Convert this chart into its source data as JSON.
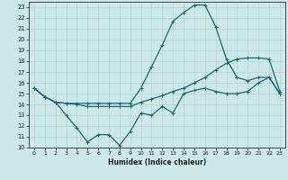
{
  "xlabel": "Humidex (Indice chaleur)",
  "bg_color": "#cce8e8",
  "grid_color": "#b0d4d4",
  "line_color": "#1a6b6b",
  "xlim": [
    -0.5,
    23.5
  ],
  "ylim": [
    10,
    23.5
  ],
  "xticks": [
    0,
    1,
    2,
    3,
    4,
    5,
    6,
    7,
    8,
    9,
    10,
    11,
    12,
    13,
    14,
    15,
    16,
    17,
    18,
    19,
    20,
    21,
    22,
    23
  ],
  "yticks": [
    10,
    11,
    12,
    13,
    14,
    15,
    16,
    17,
    18,
    19,
    20,
    21,
    22,
    23
  ],
  "line1_x": [
    0,
    1,
    2,
    3,
    4,
    5,
    6,
    7,
    8,
    9,
    10,
    11,
    12,
    13,
    14,
    15,
    16,
    17,
    18,
    19,
    20,
    21,
    22,
    23
  ],
  "line1_y": [
    15.5,
    14.7,
    14.2,
    14.1,
    14.1,
    14.1,
    14.1,
    14.1,
    14.1,
    14.1,
    15.5,
    17.5,
    19.5,
    21.7,
    22.5,
    23.2,
    23.2,
    21.2,
    18.2,
    16.5,
    16.2,
    16.5,
    16.5,
    15.0
  ],
  "line2_x": [
    0,
    1,
    2,
    3,
    4,
    5,
    6,
    7,
    8,
    9,
    10,
    11,
    12,
    13,
    14,
    15,
    16,
    17,
    18,
    19,
    20,
    21,
    22,
    23
  ],
  "line2_y": [
    15.5,
    14.7,
    14.2,
    14.1,
    14.0,
    13.8,
    13.8,
    13.8,
    13.8,
    13.8,
    14.2,
    14.5,
    14.8,
    15.2,
    15.5,
    16.0,
    16.5,
    17.2,
    17.8,
    18.2,
    18.3,
    18.3,
    18.2,
    15.2
  ],
  "line3_x": [
    0,
    1,
    2,
    3,
    4,
    5,
    6,
    7,
    8,
    9,
    10,
    11,
    12,
    13,
    14,
    15,
    16,
    17,
    18,
    19,
    20,
    21,
    22,
    23
  ],
  "line3_y": [
    15.5,
    14.7,
    14.2,
    13.0,
    11.8,
    10.5,
    11.2,
    11.2,
    10.2,
    11.5,
    13.2,
    13.0,
    13.8,
    13.2,
    15.0,
    15.3,
    15.5,
    15.2,
    15.0,
    15.0,
    15.2,
    16.0,
    16.5,
    15.0
  ]
}
